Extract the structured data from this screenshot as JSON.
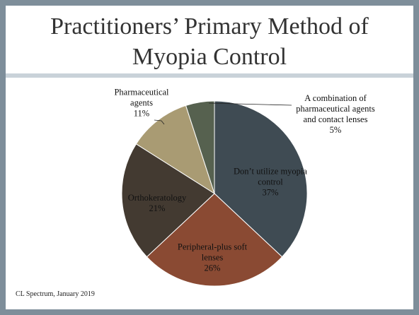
{
  "chart_data": {
    "type": "pie",
    "title": "Practitioners’ Primary Method of Myopia Control",
    "categories": [
      "Don’t utilize myopia control",
      "Peripheral-plus soft lenses",
      "Orthokeratology",
      "Pharmaceutical agents",
      "A combination of pharmaceutical agents and contact lenses"
    ],
    "values": [
      37,
      26,
      21,
      11,
      5
    ],
    "value_labels": [
      "37%",
      "26%",
      "21%",
      "11%",
      "5%"
    ],
    "colors": [
      "#3f4b53",
      "#8a4a33",
      "#433a31",
      "#a99b73",
      "#56614f"
    ],
    "source": "CL Spectrum, January 2019"
  }
}
